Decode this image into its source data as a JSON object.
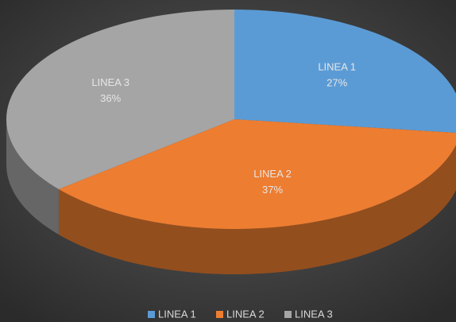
{
  "chart_data": {
    "type": "pie3d",
    "categories": [
      "LINEA 1",
      "LINEA 2",
      "LINEA 3"
    ],
    "values": [
      27,
      37,
      36
    ],
    "value_labels": [
      "27%",
      "37%",
      "36%"
    ],
    "colors": [
      "#5b9bd5",
      "#ed7d31",
      "#a5a5a5"
    ],
    "legend": "bottom"
  }
}
